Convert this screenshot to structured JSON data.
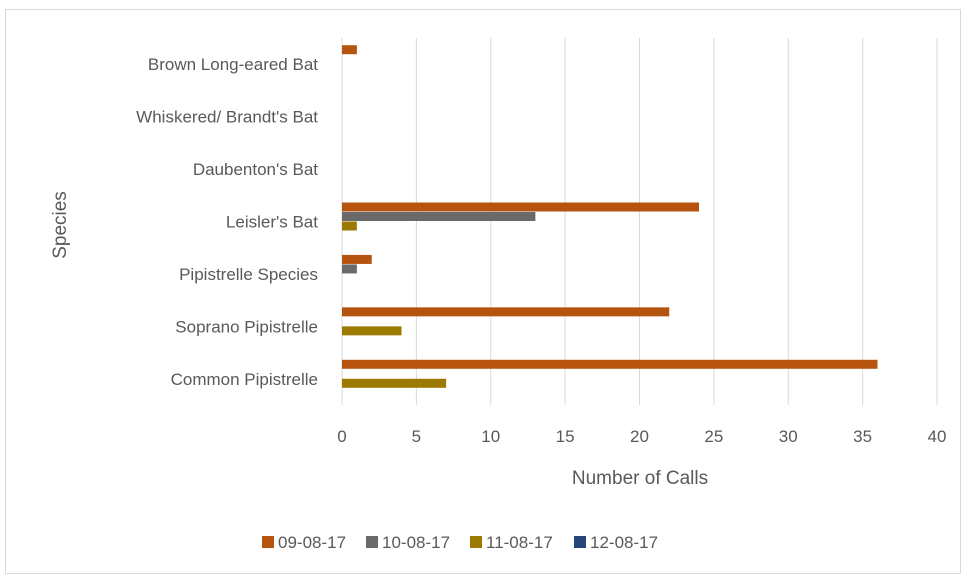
{
  "chart_data": {
    "type": "bar",
    "orientation": "horizontal",
    "title": "",
    "xlabel": "Number of Calls",
    "ylabel": "Species",
    "xlim": [
      0,
      40
    ],
    "xticks": [
      0,
      5,
      10,
      15,
      20,
      25,
      30,
      35,
      40
    ],
    "grid": true,
    "legend_position": "bottom",
    "categories": [
      "Common Pipistrelle",
      "Soprano Pipistrelle",
      "Pipistrelle Species",
      "Leisler's Bat",
      "Daubenton's Bat",
      "Whiskered/ Brandt's Bat",
      "Brown Long-eared Bat"
    ],
    "series": [
      {
        "name": "09-08-17",
        "color": "#b5530f",
        "values": [
          36,
          22,
          2,
          24,
          0,
          0,
          1
        ]
      },
      {
        "name": "10-08-17",
        "color": "#6a6a6a",
        "values": [
          0,
          0,
          1,
          13,
          0,
          0,
          0
        ]
      },
      {
        "name": "11-08-17",
        "color": "#9c7a00",
        "values": [
          7,
          4,
          0,
          1,
          0,
          0,
          0
        ]
      },
      {
        "name": "12-08-17",
        "color": "#26457a",
        "values": [
          0,
          0,
          0,
          0,
          0,
          0,
          0
        ]
      }
    ]
  }
}
